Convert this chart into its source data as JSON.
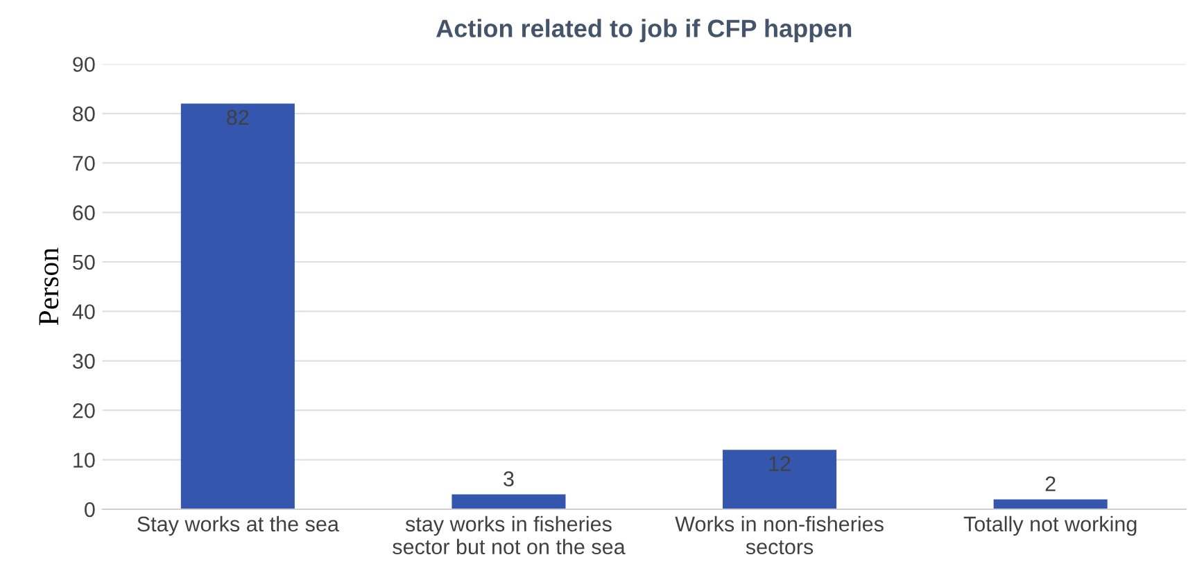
{
  "chart_data": {
    "type": "bar",
    "title": "Action related to job if CFP happen",
    "ylabel": "Person",
    "categories": [
      "Stay works at the sea",
      "stay works in fisheries\nsector but not on the sea",
      "Works in non-fisheries\nsectors",
      "Totally not working"
    ],
    "values": [
      82,
      3,
      12,
      2
    ],
    "color": "#3556ad",
    "ylim": [
      0,
      90
    ],
    "yticks": [
      0,
      10,
      20,
      30,
      40,
      50,
      60,
      70,
      80,
      90
    ],
    "grid": "y",
    "data_labels": true
  }
}
